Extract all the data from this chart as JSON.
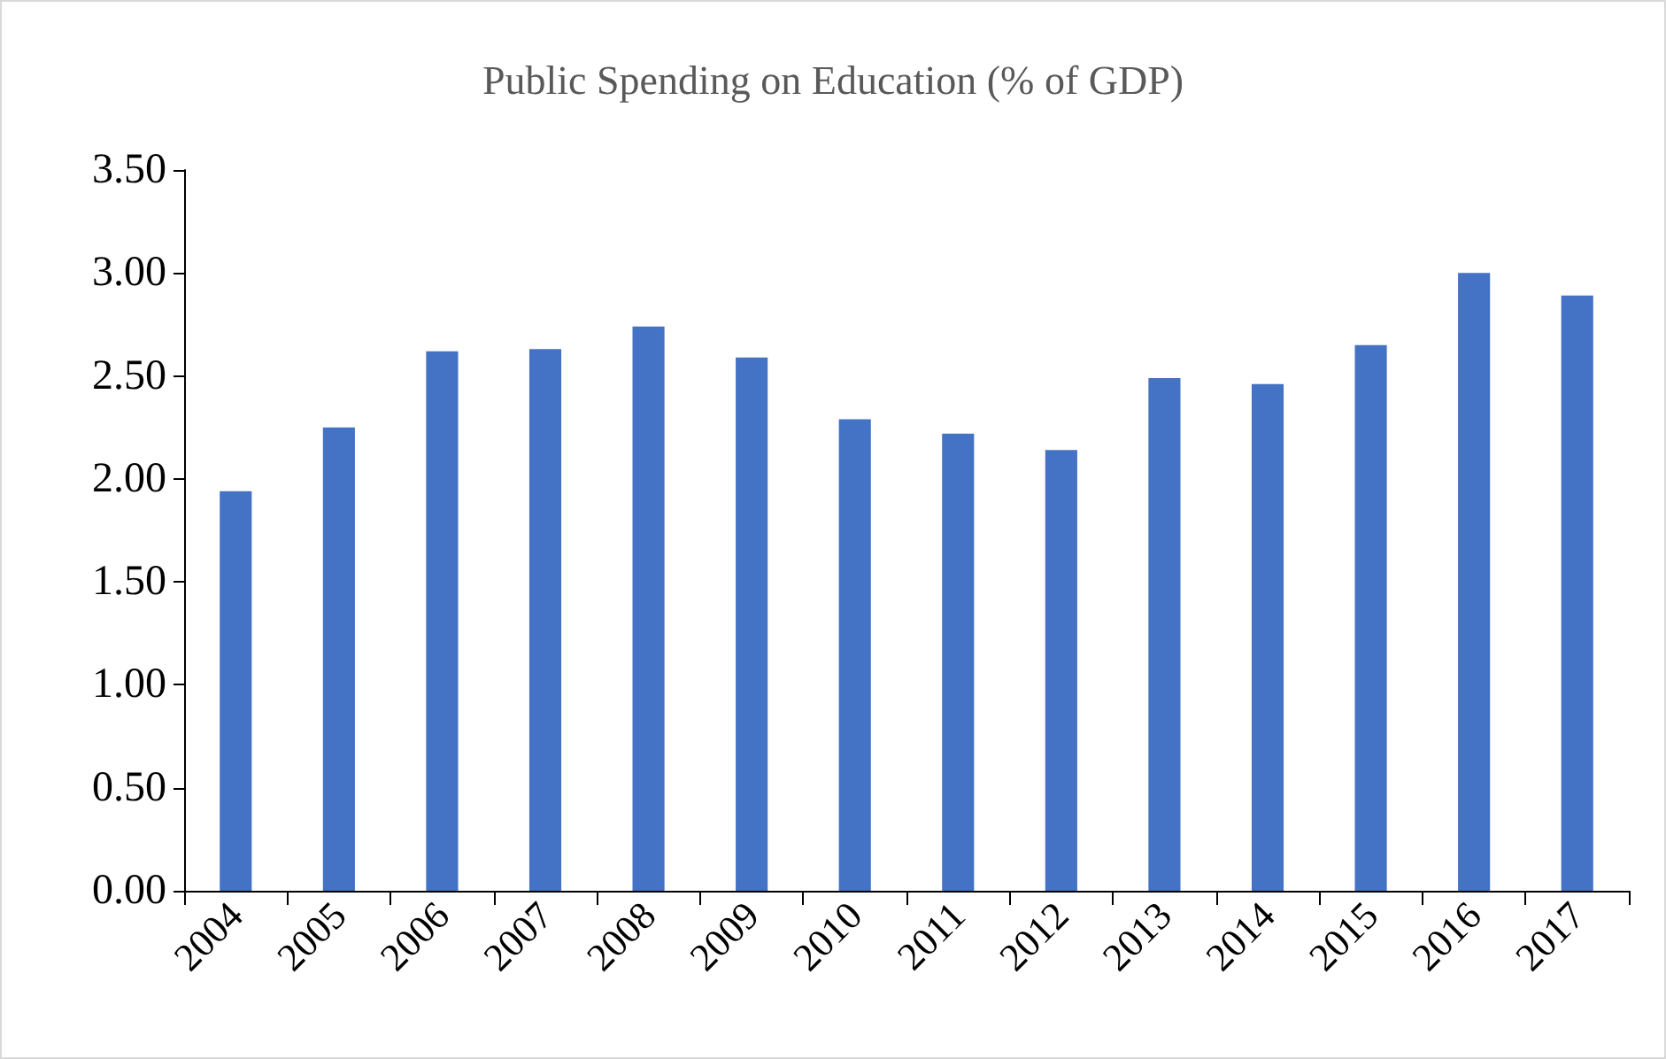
{
  "chart_data": {
    "type": "bar",
    "title": "Public Spending on Education (% of GDP)",
    "categories": [
      "2004",
      "2005",
      "2006",
      "2007",
      "2008",
      "2009",
      "2010",
      "2011",
      "2012",
      "2013",
      "2014",
      "2015",
      "2016",
      "2017"
    ],
    "values": [
      1.94,
      2.25,
      2.62,
      2.63,
      2.74,
      2.59,
      2.29,
      2.22,
      2.14,
      2.49,
      2.46,
      2.65,
      3.0,
      2.89
    ],
    "color": "#4472c4",
    "ylim": [
      0,
      3.5
    ],
    "yticks": [
      {
        "value": 0,
        "label": "0.00"
      },
      {
        "value": 0.5,
        "label": "0.50"
      },
      {
        "value": 1,
        "label": "1.00"
      },
      {
        "value": 1.5,
        "label": "1.50"
      },
      {
        "value": 2,
        "label": "2.00"
      },
      {
        "value": 2.5,
        "label": "2.50"
      },
      {
        "value": 3,
        "label": "3.00"
      },
      {
        "value": 3.5,
        "label": "3.50"
      }
    ],
    "grid": false
  }
}
